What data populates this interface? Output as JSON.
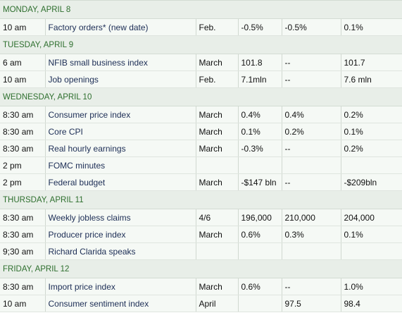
{
  "days": [
    {
      "label": "MONDAY, APRIL 8",
      "rows": [
        {
          "time": "10 am",
          "event": "Factory orders* (new date)",
          "period": "Feb.",
          "actual": "-0.5%",
          "forecast": "-0.5%",
          "previous": "0.1%"
        }
      ]
    },
    {
      "label": "TUESDAY, APRIL 9",
      "rows": [
        {
          "time": "6 am",
          "event": "NFIB small business index",
          "period": "March",
          "actual": "101.8",
          "forecast": "--",
          "previous": "101.7"
        },
        {
          "time": "10 am",
          "event": "Job openings",
          "period": "Feb.",
          "actual": "7.1mln",
          "forecast": "--",
          "previous": "7.6 mln"
        }
      ]
    },
    {
      "label": "WEDNESDAY, APRIL 10",
      "rows": [
        {
          "time": "8:30 am",
          "event": "Consumer price index",
          "period": "March",
          "actual": "0.4%",
          "forecast": "0.4%",
          "previous": "0.2%"
        },
        {
          "time": "8:30 am",
          "event": "Core CPI",
          "period": "March",
          "actual": "0.1%",
          "forecast": "0.2%",
          "previous": "0.1%"
        },
        {
          "time": "8:30 am",
          "event": "Real hourly earnings",
          "period": "March",
          "actual": "-0.3%",
          "forecast": "--",
          "previous": "0.2%"
        },
        {
          "time": "2 pm",
          "event": "FOMC minutes",
          "period": "",
          "actual": "",
          "forecast": "",
          "previous": ""
        },
        {
          "time": "2 pm",
          "event": "Federal budget",
          "period": "March",
          "actual": "-$147 bln",
          "forecast": "--",
          "previous": "-$209bln"
        }
      ]
    },
    {
      "label": "THURSDAY, APRIL 11",
      "rows": [
        {
          "time": "8:30 am",
          "event": "Weekly jobless claims",
          "period": "4/6",
          "actual": "196,000",
          "forecast": "210,000",
          "previous": "204,000"
        },
        {
          "time": "8:30 am",
          "event": "Producer price index",
          "period": "March",
          "actual": "0.6%",
          "forecast": "0.3%",
          "previous": "0.1%"
        },
        {
          "time": "9;30 am",
          "event": "Richard Clarida speaks",
          "period": "",
          "actual": "",
          "forecast": "",
          "previous": ""
        }
      ]
    },
    {
      "label": "FRIDAY, APRIL 12",
      "rows": [
        {
          "time": "8:30 am",
          "event": "Import price index",
          "period": "March",
          "actual": "0.6%",
          "forecast": "--",
          "previous": "1.0%"
        },
        {
          "time": "10 am",
          "event": "Consumer sentiment index",
          "period": "April",
          "actual": "",
          "forecast": "97.5",
          "previous": "98.4"
        }
      ]
    }
  ]
}
